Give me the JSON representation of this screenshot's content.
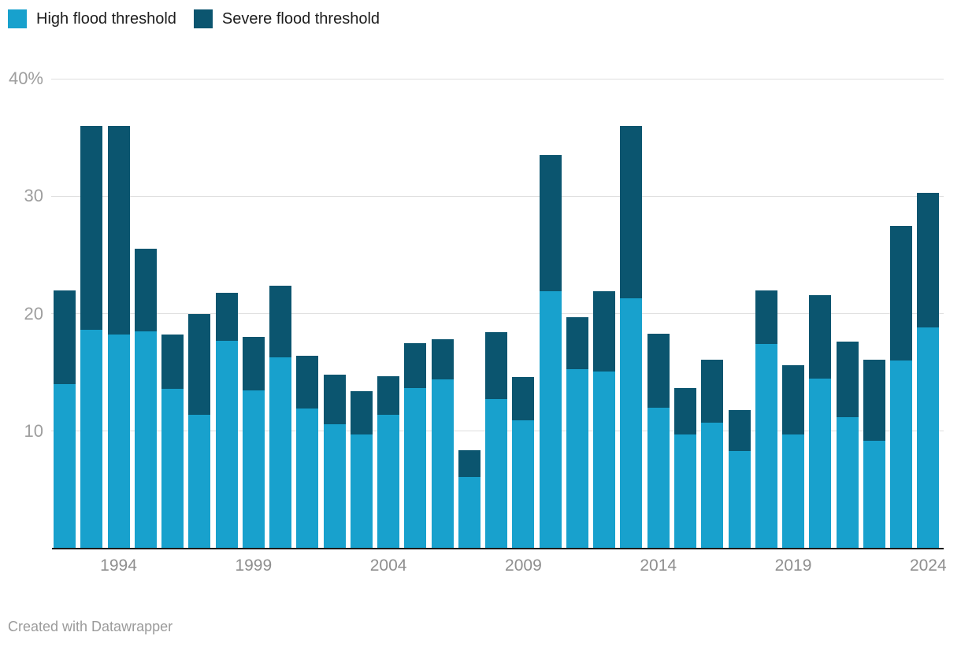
{
  "legend": {
    "items": [
      {
        "label": "High flood threshold",
        "color": "#18A1CD"
      },
      {
        "label": "Severe flood threshold",
        "color": "#0B556F"
      }
    ]
  },
  "footer": {
    "text": "Created with Datawrapper"
  },
  "colors": {
    "high": "#18A1CD",
    "severe": "#0B556F",
    "grid": "#DEDEDE",
    "axis": "#1A1A1A",
    "y_tick_text": "#9E9E9E",
    "x_tick_text": "#8F8F8F",
    "legend_text": "#1D1D1D",
    "footer_text": "#9B9B9B",
    "background": "#FFFFFF"
  },
  "chart_data": {
    "type": "bar",
    "stacked": true,
    "grid": true,
    "legend_position": "top-left",
    "unit": "%",
    "categories": [
      1992,
      1993,
      1994,
      1995,
      1996,
      1997,
      1998,
      1999,
      2000,
      2001,
      2002,
      2003,
      2004,
      2005,
      2006,
      2007,
      2008,
      2009,
      2010,
      2011,
      2012,
      2013,
      2014,
      2015,
      2016,
      2017,
      2018,
      2019,
      2020,
      2021,
      2022,
      2023,
      2024
    ],
    "series": [
      {
        "name": "High flood threshold",
        "color": "#18A1CD",
        "values": [
          14.0,
          18.6,
          18.2,
          18.5,
          13.6,
          11.4,
          17.7,
          13.5,
          16.3,
          11.9,
          10.6,
          9.7,
          11.4,
          13.7,
          14.4,
          6.1,
          12.7,
          10.9,
          21.9,
          15.3,
          15.1,
          21.3,
          12.0,
          9.7,
          10.7,
          8.3,
          17.4,
          9.7,
          14.5,
          11.2,
          9.2,
          16.0,
          18.8
        ]
      },
      {
        "name": "Severe flood threshold",
        "color": "#0B556F",
        "values": [
          8.0,
          17.4,
          17.8,
          7.0,
          4.6,
          8.6,
          4.1,
          4.5,
          6.1,
          4.5,
          4.2,
          3.7,
          3.3,
          3.8,
          3.4,
          2.3,
          5.7,
          3.7,
          11.6,
          4.4,
          6.8,
          14.7,
          6.3,
          4.0,
          5.4,
          3.5,
          4.6,
          5.9,
          7.1,
          6.4,
          6.9,
          11.5,
          11.5
        ]
      }
    ],
    "stack_totals": [
      22.0,
      36.0,
      36.0,
      25.5,
      18.2,
      20.0,
      21.8,
      18.0,
      22.4,
      16.4,
      14.8,
      13.4,
      14.7,
      17.5,
      17.8,
      8.4,
      18.4,
      14.6,
      33.5,
      19.7,
      21.9,
      36.0,
      18.3,
      13.7,
      16.1,
      11.8,
      22.0,
      15.6,
      21.6,
      17.6,
      16.1,
      27.5,
      30.3
    ],
    "y_axis": {
      "max": 40,
      "ticks": [
        {
          "value": 40,
          "label": "40%"
        },
        {
          "value": 30,
          "label": "30"
        },
        {
          "value": 20,
          "label": "20"
        },
        {
          "value": 10,
          "label": "10"
        }
      ]
    },
    "x_axis": {
      "ticks": [
        {
          "label": "1994",
          "index": 2
        },
        {
          "label": "1999",
          "index": 7
        },
        {
          "label": "2004",
          "index": 12
        },
        {
          "label": "2009",
          "index": 17
        },
        {
          "label": "2014",
          "index": 22
        },
        {
          "label": "2019",
          "index": 27
        },
        {
          "label": "2024",
          "index": 32
        }
      ]
    }
  }
}
